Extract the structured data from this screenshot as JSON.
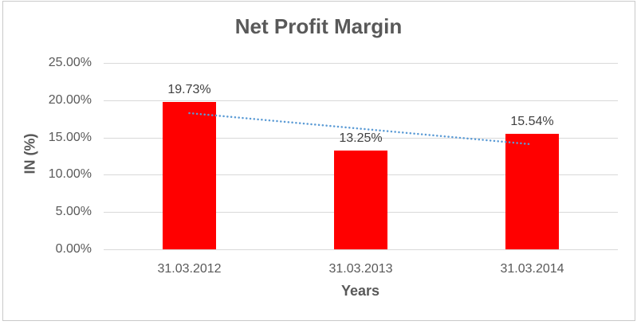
{
  "chart_data": {
    "type": "bar",
    "title": "Net Profit Margin",
    "xlabel": "Years",
    "ylabel": "IN (%)",
    "categories": [
      "31.03.2012",
      "31.03.2013",
      "31.03.2014"
    ],
    "values": [
      19.73,
      13.25,
      15.54
    ],
    "data_labels": [
      "19.73%",
      "13.25%",
      "15.54%"
    ],
    "ylim": [
      0,
      25
    ],
    "yticks": [
      {
        "value": 0,
        "label": "0.00%"
      },
      {
        "value": 5,
        "label": "5.00%"
      },
      {
        "value": 10,
        "label": "10.00%"
      },
      {
        "value": 15,
        "label": "15.00%"
      },
      {
        "value": 20,
        "label": "20.00%"
      },
      {
        "value": 25,
        "label": "25.00%"
      }
    ],
    "grid": true,
    "legend": "none",
    "trendline": {
      "type": "linear",
      "start_value": 18.27,
      "end_value": 14.08,
      "style": "dotted",
      "color": "#5b9bd5"
    },
    "colors": {
      "bar": "#ff0000",
      "gridline": "#d9d9d9",
      "title_text": "#595959",
      "axis_text": "#595959",
      "data_label_text": "#404040",
      "border": "#c9c9c9",
      "background": "#ffffff"
    }
  }
}
